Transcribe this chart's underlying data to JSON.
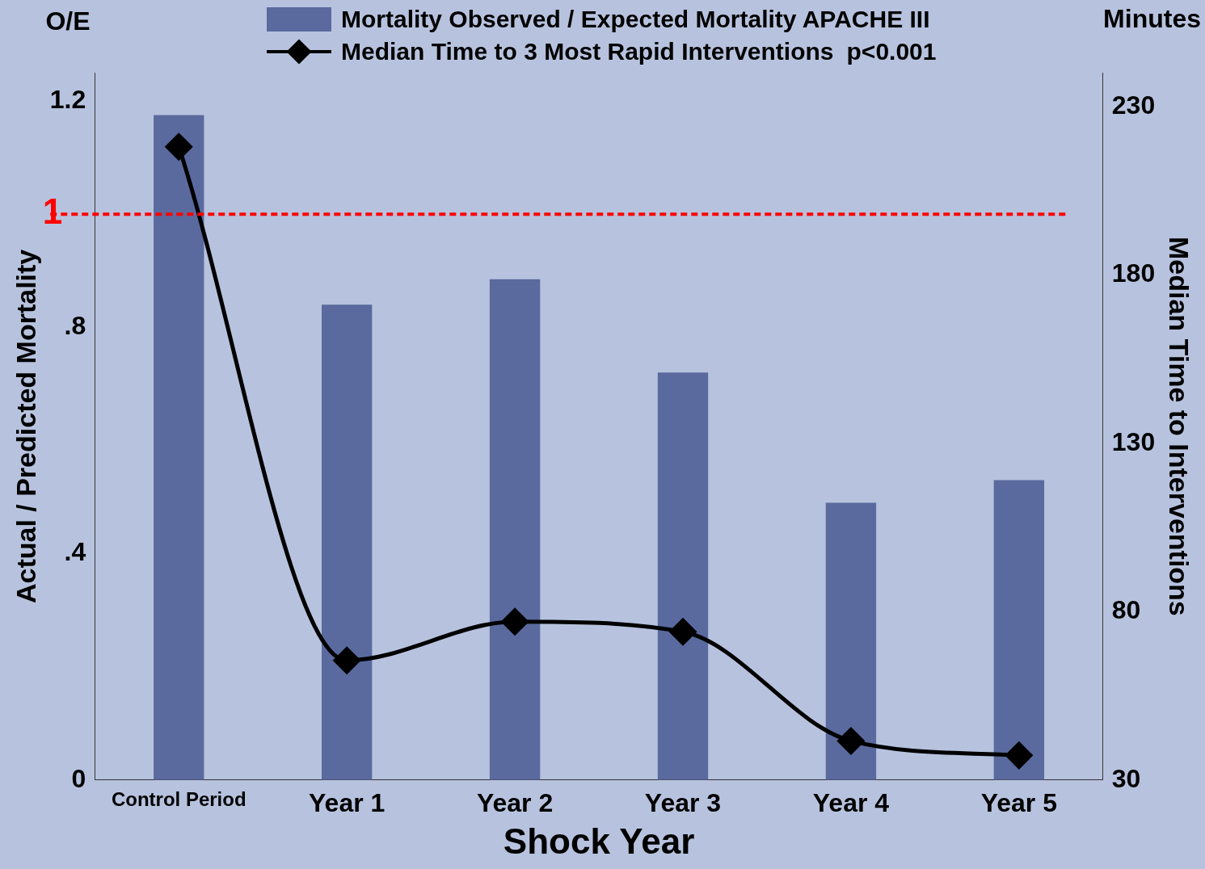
{
  "chart_data": {
    "type": "bar",
    "xlabel": "Shock Year",
    "ylabel": "Actual / Predicted Mortality",
    "y2label": "Median Time to Interventions",
    "categories": [
      "Control Period",
      "Year 1",
      "Year 2",
      "Year 3",
      "Year 4",
      "Year 5"
    ],
    "series": [
      {
        "name": "Mortality Observed / Expected Mortality APACHE III",
        "color": "#5a6a9e",
        "values": [
          1.175,
          0.84,
          0.885,
          0.72,
          0.49,
          0.53
        ]
      },
      {
        "name": "Median Time to 3 Most Rapid Interventions",
        "type": "line",
        "axis": "y2",
        "color": "#000000",
        "marker": "diamond",
        "line_style": "solid",
        "values": [
          218,
          65.5,
          77,
          74,
          41.6,
          37.3
        ]
      }
    ],
    "ylim": [
      0,
      1.25
    ],
    "yticks": [
      0,
      {
        "value": 0.4,
        "label": ".4"
      },
      {
        "value": 0.8,
        "label": ".8"
      },
      1.2
    ],
    "y2lim": [
      30,
      240
    ],
    "y2ticks": [
      30,
      80,
      130,
      180,
      230
    ],
    "ref_lines": [
      {
        "axis": "y",
        "value": 1,
        "label": "1",
        "color": "#ff0000",
        "line_style": "dashed"
      }
    ],
    "annotations": [
      "O/E",
      "Minutes",
      "p<0.001"
    ],
    "grid": false,
    "legend": "top"
  }
}
